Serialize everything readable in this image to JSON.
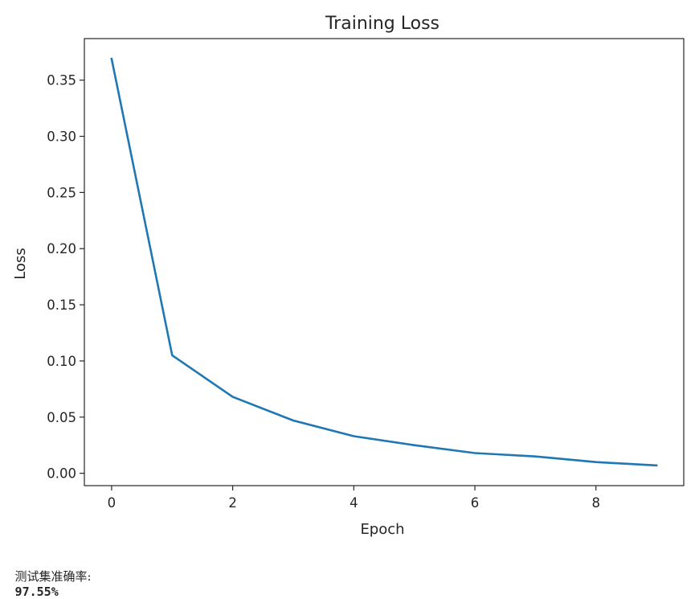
{
  "chart_data": {
    "type": "line",
    "title": "Training Loss",
    "xlabel": "Epoch",
    "ylabel": "Loss",
    "x": [
      0,
      1,
      2,
      3,
      4,
      5,
      6,
      7,
      8,
      9
    ],
    "series": [
      {
        "name": "Training Loss",
        "color": "#1f77b4",
        "values": [
          0.369,
          0.105,
          0.068,
          0.047,
          0.033,
          0.025,
          0.018,
          0.015,
          0.01,
          0.007
        ]
      }
    ],
    "xlim": [
      -0.45,
      9.45
    ],
    "ylim": [
      -0.011,
      0.387
    ],
    "xticks": [
      0,
      2,
      4,
      6,
      8
    ],
    "xtick_labels": [
      "0",
      "2",
      "4",
      "6",
      "8"
    ],
    "yticks": [
      0.0,
      0.05,
      0.1,
      0.15,
      0.2,
      0.25,
      0.3,
      0.35
    ],
    "ytick_labels": [
      "0.00",
      "0.05",
      "0.10",
      "0.15",
      "0.20",
      "0.25",
      "0.30",
      "0.35"
    ],
    "grid": false,
    "legend": null
  },
  "output": {
    "label": "测试集准确率:",
    "value": "97.55%"
  }
}
